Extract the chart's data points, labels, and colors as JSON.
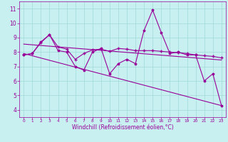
{
  "xlabel": "Windchill (Refroidissement éolien,°C)",
  "background_color": "#c8f0f0",
  "line_color": "#990099",
  "grid_color": "#a0d8d8",
  "xlim": [
    -0.5,
    23.5
  ],
  "ylim": [
    3.5,
    11.5
  ],
  "yticks": [
    4,
    5,
    6,
    7,
    8,
    9,
    10,
    11
  ],
  "xticks": [
    0,
    1,
    2,
    3,
    4,
    5,
    6,
    7,
    8,
    9,
    10,
    11,
    12,
    13,
    14,
    15,
    16,
    17,
    18,
    19,
    20,
    21,
    22,
    23
  ],
  "line1_x": [
    0,
    1,
    2,
    3,
    4,
    5,
    6,
    7,
    8,
    9,
    10,
    11,
    12,
    13,
    14,
    15,
    16,
    17,
    18,
    19,
    20,
    21,
    22,
    23
  ],
  "line1_y": [
    7.8,
    7.9,
    8.7,
    9.2,
    8.1,
    8.0,
    7.0,
    6.75,
    8.0,
    8.25,
    6.5,
    7.2,
    7.5,
    7.2,
    9.5,
    10.9,
    9.35,
    7.9,
    8.0,
    7.8,
    7.8,
    6.0,
    6.5,
    4.3
  ],
  "line2_x": [
    0,
    1,
    2,
    3,
    4,
    5,
    6,
    7,
    8,
    9,
    10,
    11,
    12,
    13,
    14,
    15,
    16,
    17,
    18,
    19,
    20,
    21,
    22,
    23
  ],
  "line2_y": [
    7.8,
    7.9,
    8.65,
    9.2,
    8.35,
    8.2,
    7.5,
    7.9,
    8.15,
    8.2,
    8.05,
    8.25,
    8.2,
    8.1,
    8.1,
    8.1,
    8.05,
    8.0,
    7.95,
    7.9,
    7.8,
    7.75,
    7.7,
    7.6
  ],
  "line3_x": [
    0,
    23
  ],
  "line3_y": [
    7.9,
    4.3
  ],
  "line4_x": [
    0,
    23
  ],
  "line4_y": [
    8.55,
    7.45
  ],
  "xlabel_fontsize": 5.5,
  "tick_fontsize_x": 4.2,
  "tick_fontsize_y": 5.5
}
